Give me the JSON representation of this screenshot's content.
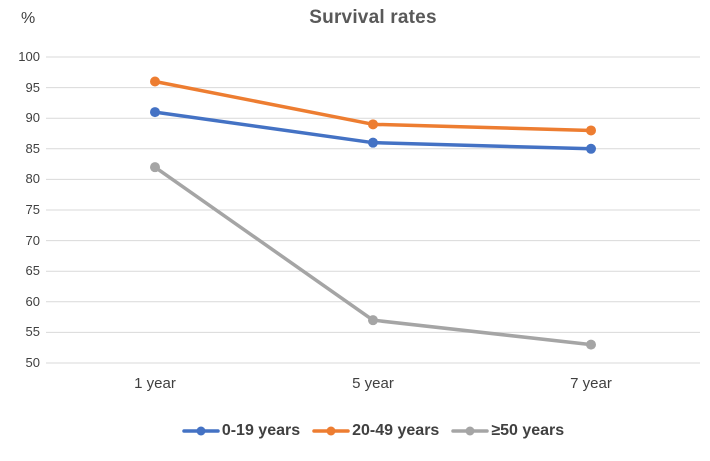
{
  "chart": {
    "title": "Survival rates",
    "y_unit_label": "%"
  },
  "chart_data": {
    "type": "line",
    "title": "Survival rates",
    "xlabel": "",
    "ylabel": "%",
    "categories": [
      "1 year",
      "5 year",
      "7 year"
    ],
    "series": [
      {
        "name": "0-19 years",
        "color": "#4472C4",
        "values": [
          91,
          86,
          85
        ]
      },
      {
        "name": "20-49 years",
        "color": "#ED7D31",
        "values": [
          96,
          89,
          88
        ]
      },
      {
        "name": "≥50 years",
        "color": "#A5A5A5",
        "values": [
          82,
          57,
          53
        ]
      }
    ],
    "ylim": [
      50,
      100
    ],
    "yticks": [
      50,
      55,
      60,
      65,
      70,
      75,
      80,
      85,
      90,
      95,
      100
    ],
    "grid": true,
    "gridline_color": "#D9D9D9",
    "text_color": "#404040",
    "title_color": "#595959",
    "legend_position": "bottom",
    "marker": "circle",
    "background": "#FFFFFF"
  }
}
